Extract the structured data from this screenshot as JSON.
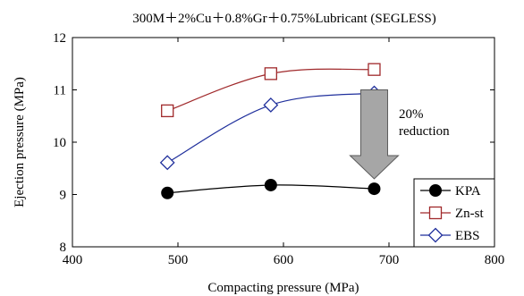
{
  "chart_data": {
    "type": "line",
    "title": "300M＋2%Cu＋0.8%Gr＋0.75%Lubricant (SEGLESS)",
    "xlabel": "Compacting pressure (MPa)",
    "ylabel": "Ejection pressure (MPa)",
    "xlim": [
      400,
      800
    ],
    "ylim": [
      8,
      12
    ],
    "xticks": [
      400,
      500,
      600,
      700,
      800
    ],
    "yticks": [
      8,
      9,
      10,
      11,
      12
    ],
    "grid": false,
    "legend_position": "bottom-right",
    "x": [
      490,
      588,
      686
    ],
    "series": [
      {
        "name": "KPA",
        "values": [
          9.03,
          9.18,
          9.11
        ],
        "color": "#000000",
        "marker": "filled-circle"
      },
      {
        "name": "Zn-st",
        "values": [
          10.6,
          11.31,
          11.39
        ],
        "color": "#a0292b",
        "marker": "open-square"
      },
      {
        "name": "EBS",
        "values": [
          9.61,
          10.71,
          10.94
        ],
        "color": "#1f2f9c",
        "marker": "open-diamond"
      }
    ],
    "annotation": {
      "line1": "20%",
      "line2": "reduction",
      "arrow_color": "#a6a6a6",
      "arrow_from_y": 11.0,
      "arrow_to_y": 9.3,
      "arrow_x": 686
    }
  }
}
